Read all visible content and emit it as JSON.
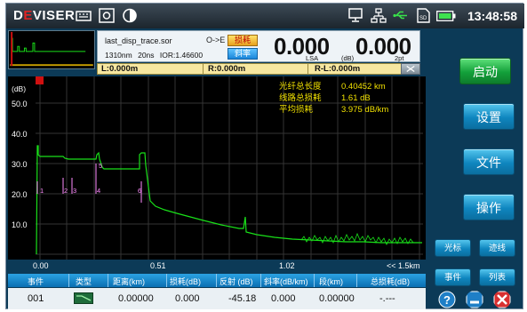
{
  "status_bar": {
    "brand_prefix": "D",
    "brand_e": "E",
    "brand_suffix": "VISER",
    "time": "13:48:58",
    "icons": [
      "keyboard-icon",
      "screenshot-icon",
      "contrast-icon",
      "monitor-icon",
      "network-icon",
      "usb-icon",
      "sd-card-icon",
      "battery-icon"
    ]
  },
  "info": {
    "file_name": "last_disp_trace.sor",
    "wavelength": "1310nm",
    "pulse": "20ns",
    "ior": "IOR:1.46600",
    "marker": "O->E",
    "loss_button": "损耗",
    "slope_button": "斜率",
    "value_1": "0.000",
    "value_2": "0.000",
    "label_lsa": "LSA",
    "label_db": "(dB)",
    "label_2pt": "2pt"
  },
  "cursors": {
    "l": "L:0.000m",
    "r": "R:0.000m",
    "rl": "R-L:0.000m"
  },
  "graph": {
    "y_unit": "(dB)",
    "y_ticks": [
      "50.0",
      "40.0",
      "30.0",
      "20.0",
      "10.0"
    ],
    "x_ticks": [
      "0.00",
      "0.51",
      "1.02"
    ],
    "x_range_label": "<< 1.5km",
    "summary": [
      {
        "label": "光纤总长度",
        "value": "0.40452 km"
      },
      {
        "label": "线路总损耗",
        "value": "1.61 dB"
      },
      {
        "label": "平均损耗",
        "value": "3.975 dB/km"
      }
    ],
    "event_labels": [
      "1",
      "2",
      "3",
      "4",
      "5",
      "6"
    ],
    "colors": {
      "trace": "#19e019",
      "text": "#f0e000",
      "grid": "#3a3a3a",
      "event": "#ff8cff"
    }
  },
  "buttons": {
    "start": "启动",
    "settings": "设置",
    "file": "文件",
    "operation": "操作",
    "cursor": "光标",
    "trace": "迹线",
    "event": "事件",
    "list": "列表"
  },
  "table": {
    "headers": [
      "事件",
      "类型",
      "距离(km)",
      "损耗(dB)",
      "反射 (dB)",
      "斜率(dB/km)",
      "段(km)",
      "总损耗(dB)"
    ],
    "rows": [
      {
        "event": "001",
        "distance": "0.00000",
        "loss": "0.000",
        "reflect": "-45.18",
        "slope": "0.000",
        "section": "0.00000",
        "total": "-.---"
      }
    ]
  }
}
